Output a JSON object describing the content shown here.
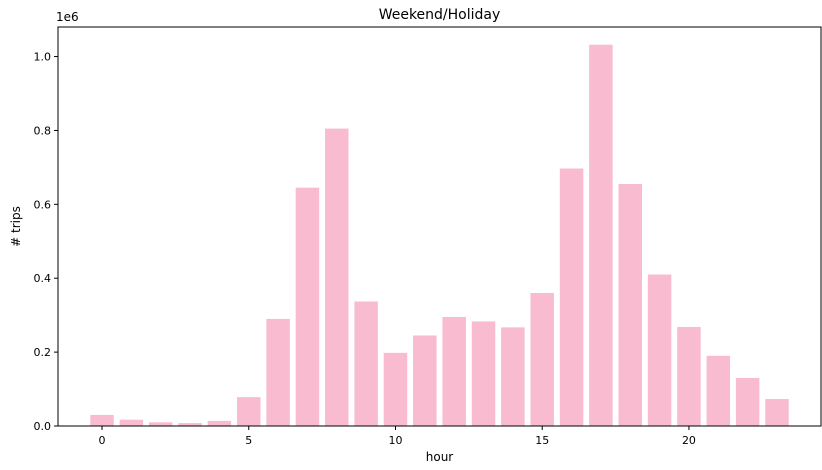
{
  "chart_data": {
    "type": "bar",
    "title": "Weekend/Holiday",
    "xlabel": "hour",
    "ylabel": "# trips",
    "y_scale_label": "1e6",
    "x": [
      0,
      1,
      2,
      3,
      4,
      5,
      6,
      7,
      8,
      9,
      10,
      11,
      12,
      13,
      14,
      15,
      16,
      17,
      18,
      19,
      20,
      21,
      22,
      23
    ],
    "values": [
      30000,
      17000,
      10000,
      8000,
      14000,
      78000,
      290000,
      645000,
      805000,
      337000,
      198000,
      245000,
      295000,
      283000,
      267000,
      360000,
      697000,
      1032000,
      655000,
      410000,
      268000,
      190000,
      130000,
      73000
    ],
    "xlim": [
      -1.5,
      24.5
    ],
    "ylim": [
      0,
      1080000
    ],
    "xticks": [
      0,
      5,
      10,
      15,
      20
    ],
    "xtick_labels": [
      "0",
      "5",
      "10",
      "15",
      "20"
    ],
    "yticks": [
      0,
      200000,
      400000,
      600000,
      800000,
      1000000
    ],
    "ytick_labels": [
      "0.0",
      "0.2",
      "0.4",
      "0.6",
      "0.8",
      "1.0"
    ],
    "grid": false,
    "bar_color": "#f8bbd0"
  }
}
